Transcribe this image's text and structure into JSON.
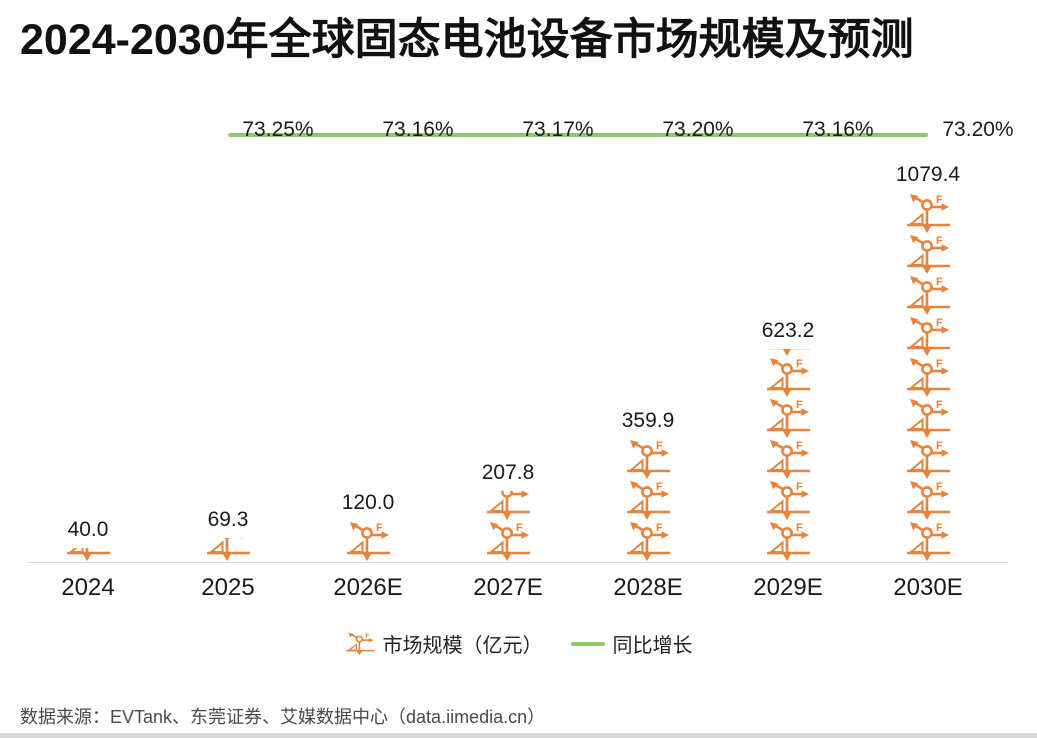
{
  "page": {
    "title": "2024-2030年全球固态电池设备市场规模及预测",
    "source": "数据来源：EVTank、东莞证券、艾媒数据中心（data.iimedia.cn）"
  },
  "colors": {
    "bar_orange": "#E8833C",
    "line_green": "#8FC866",
    "axis_gray": "#D9D9D9",
    "text_dark": "#1A1A1A",
    "source_gray": "#4A4A4A",
    "bottom_strip_gray": "#D8D8D8"
  },
  "legend": {
    "market_size_label": "市场规模（亿元）",
    "growth_label": "同比增长",
    "market_size_swatch": "force-diagram-icon",
    "growth_swatch": "green-line"
  },
  "chart_data": {
    "type": "bar",
    "subtype": "pictogram-bar-with-line-overlay",
    "title": "2024-2030年全球固态电池设备市场规模及预测",
    "categories": [
      "2024",
      "2025",
      "2026E",
      "2027E",
      "2028E",
      "2029E",
      "2030E"
    ],
    "series": [
      {
        "name": "市场规模（亿元）",
        "type": "pictogram-bar",
        "icon": "force-diagram-icon",
        "color": "#E8833C",
        "units_per_icon": 120,
        "values": [
          40.0,
          69.3,
          120.0,
          207.8,
          359.9,
          623.2,
          1079.4
        ],
        "value_labels": [
          "40.0",
          "69.3",
          "120.0",
          "207.8",
          "359.9",
          "623.2",
          "1079.4"
        ]
      },
      {
        "name": "同比增长",
        "type": "line",
        "color": "#8FC866",
        "categories": [
          "2025",
          "2026E",
          "2027E",
          "2028E",
          "2029E",
          "2030E"
        ],
        "values": [
          73.25,
          73.16,
          73.17,
          73.2,
          73.16,
          73.2
        ],
        "value_labels": [
          "73.25%",
          "73.16%",
          "73.17%",
          "73.20%",
          "73.16%",
          "73.20%"
        ],
        "shape": "flat-horizontal"
      }
    ],
    "xlabel": "",
    "ylabel": "",
    "grid": false,
    "legend_position": "bottom-center"
  }
}
